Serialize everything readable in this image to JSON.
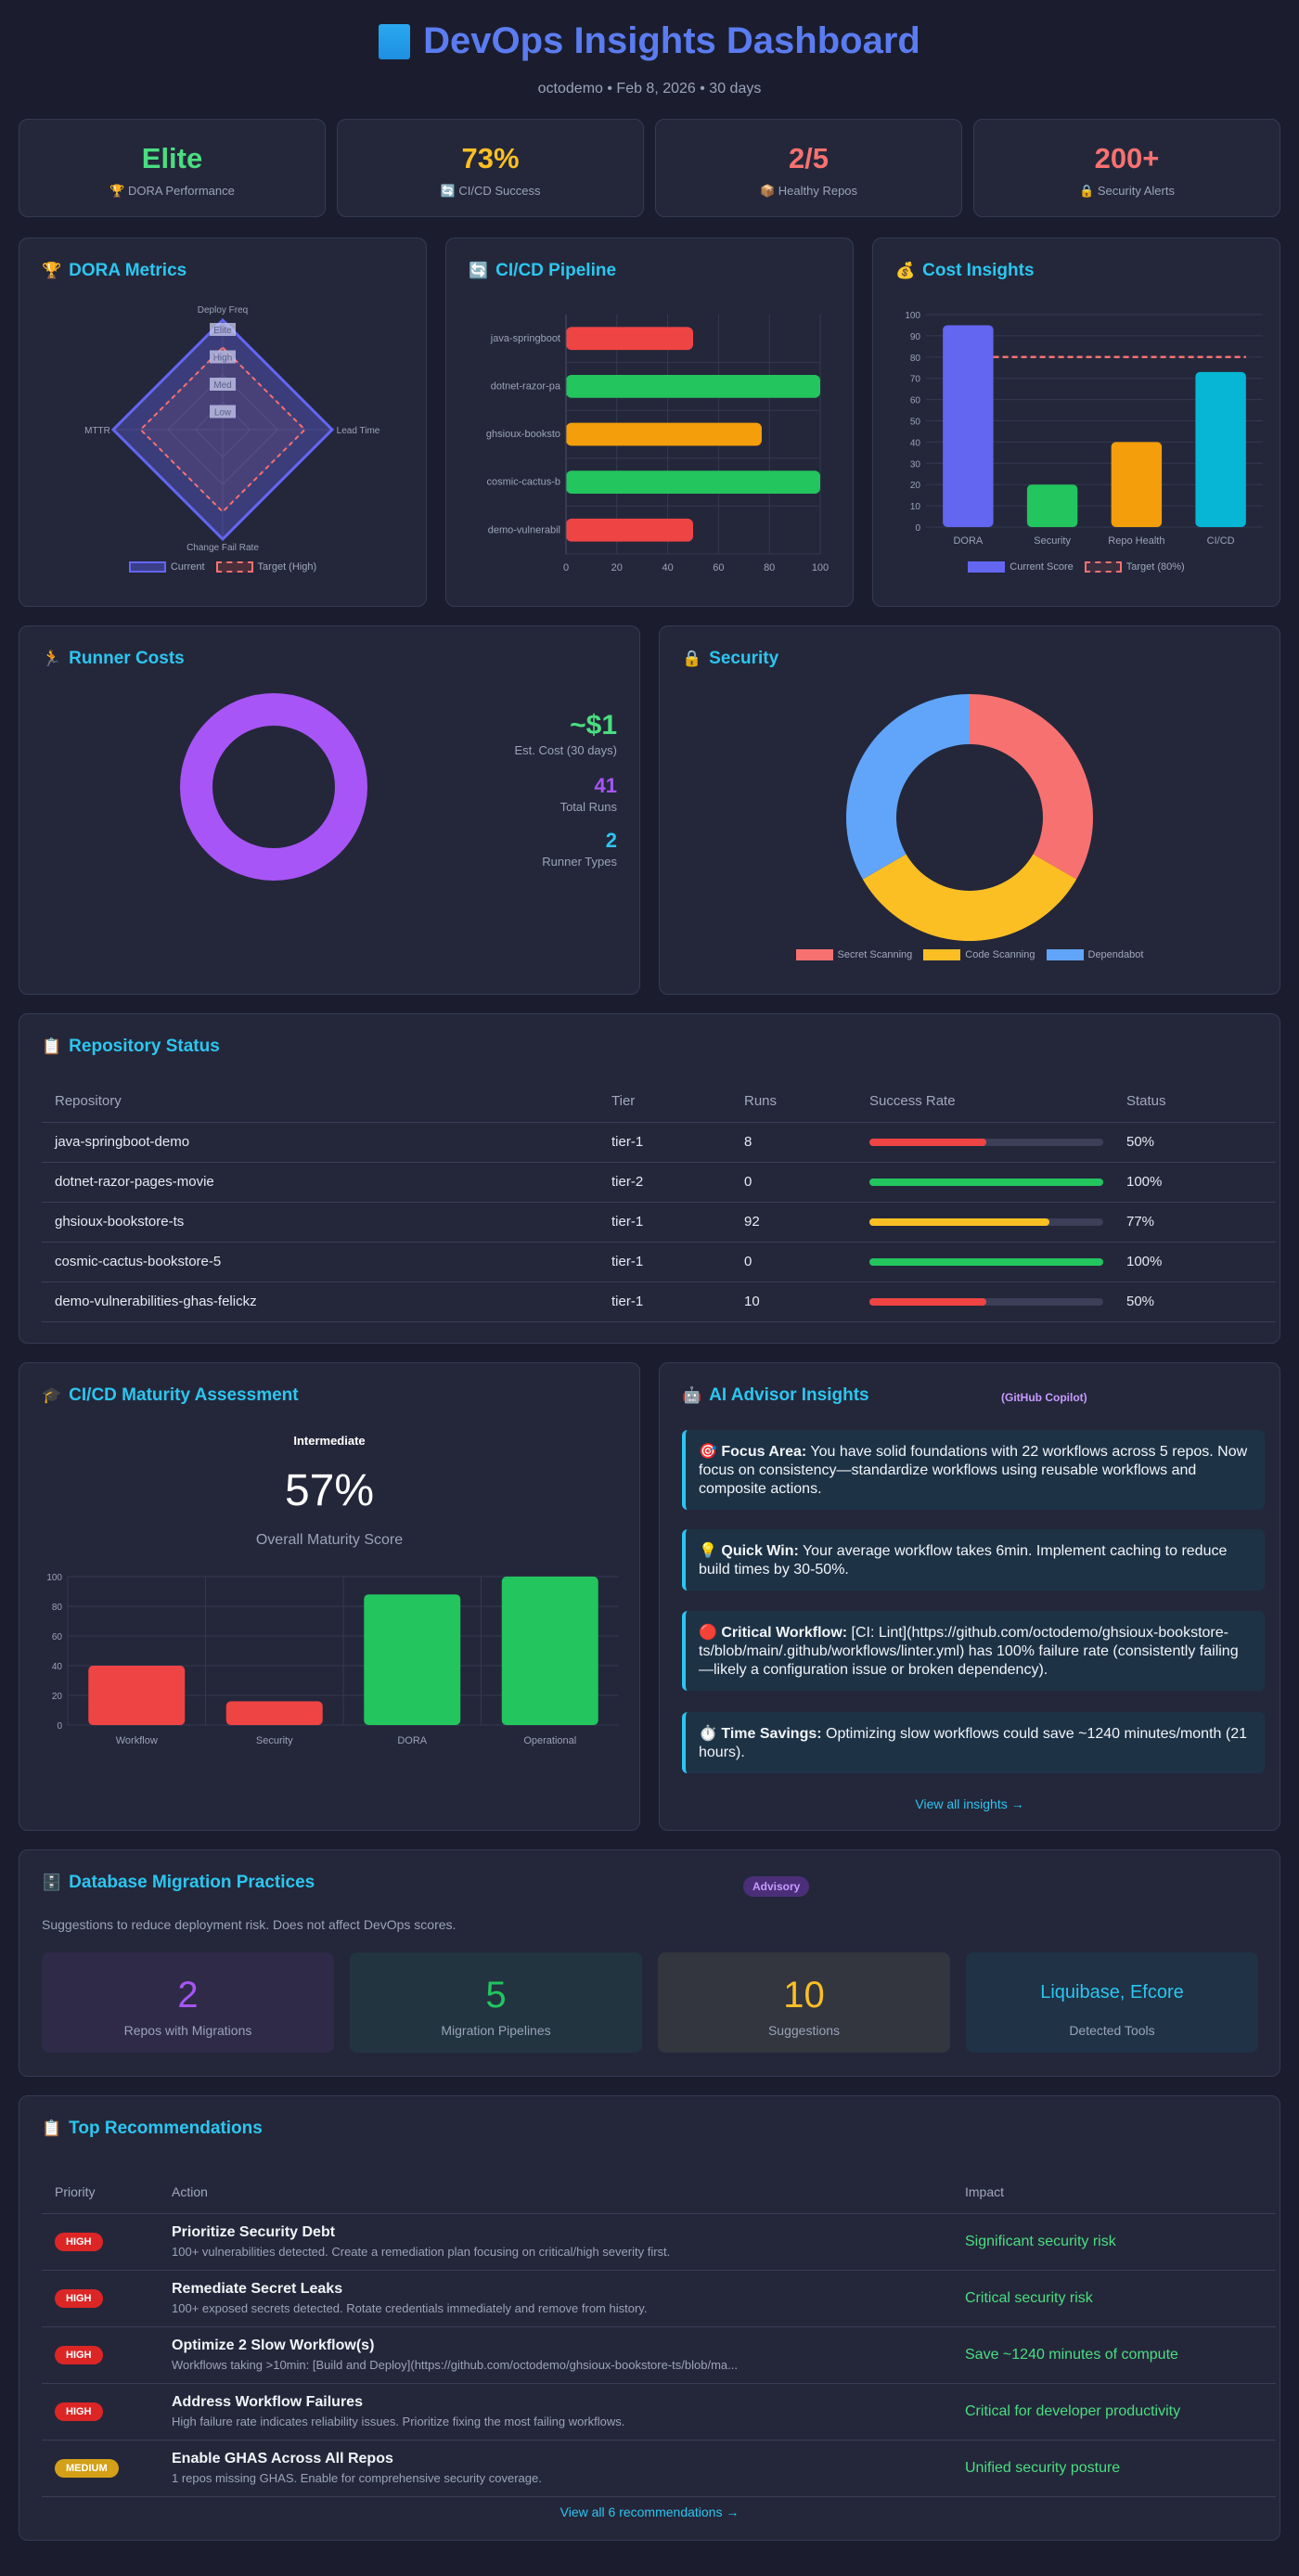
{
  "header": {
    "title": "DevOps Insights Dashboard",
    "subtitle": "octodemo • Feb 8, 2026 • 30 days"
  },
  "kpis": [
    {
      "value": "Elite",
      "label": "DORA Performance",
      "icon": "trophy-icon",
      "emoji": "🏆",
      "color": "#4ade80"
    },
    {
      "value": "73%",
      "label": "CI/CD Success",
      "icon": "refresh-icon",
      "emoji": "🔄",
      "color": "#fbbf24"
    },
    {
      "value": "2/5",
      "label": "Healthy Repos",
      "icon": "package-icon",
      "emoji": "📦",
      "color": "#f87171"
    },
    {
      "value": "200+",
      "label": "Security Alerts",
      "icon": "lock-icon",
      "emoji": "🔒",
      "color": "#f87171"
    }
  ],
  "dora": {
    "title": "DORA Metrics",
    "emoji": "🏆",
    "axes": [
      "Deploy Freq",
      "Lead Time",
      "Change Fail Rate",
      "MTTR"
    ],
    "rings": [
      "Elite",
      "High",
      "Med",
      "Low"
    ],
    "legend_current": "Current",
    "legend_target": "Target (High)"
  },
  "pipeline": {
    "title": "CI/CD Pipeline",
    "emoji": "🔄",
    "xticks": [
      "0",
      "20",
      "40",
      "60",
      "80",
      "100"
    ]
  },
  "cost": {
    "title": "Cost Insights",
    "emoji": "💰",
    "legend_current": "Current Score",
    "legend_target": "Target (80%)"
  },
  "runner": {
    "title": "Runner Costs",
    "emoji": "🏃",
    "cost_value": "~$1",
    "cost_label": "Est. Cost (30 days)",
    "runs_value": "41",
    "runs_label": "Total Runs",
    "types_value": "2",
    "types_label": "Runner Types"
  },
  "security": {
    "title": "Security",
    "emoji": "🔒"
  },
  "repos": {
    "title": "Repository Status",
    "emoji": "📋",
    "headers": [
      "Repository",
      "Tier",
      "Runs",
      "Success Rate",
      "Status"
    ],
    "rows": [
      {
        "name": "java-springboot-demo",
        "tier": "tier-1",
        "runs": "8",
        "rate": 0.5,
        "status": "50%",
        "color": "#ef4444"
      },
      {
        "name": "dotnet-razor-pages-movie",
        "tier": "tier-2",
        "runs": "0",
        "rate": 1.0,
        "status": "100%",
        "color": "#22c55e"
      },
      {
        "name": "ghsioux-bookstore-ts",
        "tier": "tier-1",
        "runs": "92",
        "rate": 0.77,
        "status": "77%",
        "color": "#fbbf24"
      },
      {
        "name": "cosmic-cactus-bookstore-5",
        "tier": "tier-1",
        "runs": "0",
        "rate": 1.0,
        "status": "100%",
        "color": "#22c55e"
      },
      {
        "name": "demo-vulnerabilities-ghas-felickz",
        "tier": "tier-1",
        "runs": "10",
        "rate": 0.5,
        "status": "50%",
        "color": "#ef4444"
      }
    ]
  },
  "maturity": {
    "title": "CI/CD Maturity Assessment",
    "emoji": "🎓",
    "level": "Intermediate",
    "score": "57%",
    "score_label": "Overall Maturity Score"
  },
  "advisor": {
    "title": "AI Advisor Insights",
    "emoji": "🤖",
    "badge": "(GitHub Copilot)",
    "items": [
      {
        "emoji": "🎯",
        "label": "Focus Area:",
        "text": " You have solid foundations with 22 workflows across 5 repos. Now focus on consistency—standardize workflows using reusable workflows and composite actions."
      },
      {
        "emoji": "💡",
        "label": "Quick Win:",
        "text": " Your average workflow takes 6min. Implement caching to reduce build times by 30-50%."
      },
      {
        "emoji": "🔴",
        "label": "Critical Workflow:",
        "text": " [CI: Lint](https://github.com/octodemo/ghsioux-bookstore-ts/blob/main/.github/workflows/linter.yml) has 100% failure rate (consistently failing—likely a configuration issue or broken dependency)."
      },
      {
        "emoji": "⏱️",
        "label": "Time Savings:",
        "text": " Optimizing slow workflows could save ~1240 minutes/month (21 hours)."
      }
    ],
    "view_all": "View all insights →"
  },
  "migration": {
    "title": "Database Migration Practices",
    "emoji": "🗄️",
    "badge": "Advisory",
    "description": "Suggestions to reduce deployment risk. Does not affect DevOps scores.",
    "tiles": [
      {
        "value": "2",
        "label": "Repos with Migrations",
        "color": "#a855f7",
        "bg": "#2e2a48"
      },
      {
        "value": "5",
        "label": "Migration Pipelines",
        "color": "#22c55e",
        "bg": "#223440"
      },
      {
        "value": "10",
        "label": "Suggestions",
        "color": "#fbbf24",
        "bg": "#33353f"
      },
      {
        "value": "Liquibase, Efcore",
        "label": "Detected Tools",
        "color": "#2cc6f0",
        "bg": "#1f3246"
      }
    ]
  },
  "recommendations": {
    "title": "Top Recommendations",
    "emoji": "📋",
    "headers": [
      "Priority",
      "Action",
      "Impact"
    ],
    "rows": [
      {
        "priority": "HIGH",
        "pcolor": "#dc2626",
        "title": "Prioritize Security Debt",
        "desc": "100+ vulnerabilities detected. Create a remediation plan focusing on critical/high severity first.",
        "impact": "Significant security risk"
      },
      {
        "priority": "HIGH",
        "pcolor": "#dc2626",
        "title": "Remediate Secret Leaks",
        "desc": "100+ exposed secrets detected. Rotate credentials immediately and remove from history.",
        "impact": "Critical security risk"
      },
      {
        "priority": "HIGH",
        "pcolor": "#dc2626",
        "title": "Optimize 2 Slow Workflow(s)",
        "desc": "Workflows taking >10min: [Build and Deploy](https://github.com/octodemo/ghsioux-bookstore-ts/blob/ma...",
        "impact": "Save ~1240 minutes of compute"
      },
      {
        "priority": "HIGH",
        "pcolor": "#dc2626",
        "title": "Address Workflow Failures",
        "desc": "High failure rate indicates reliability issues. Prioritize fixing the most failing workflows.",
        "impact": "Critical for developer productivity"
      },
      {
        "priority": "MEDIUM",
        "pcolor": "#d4a017",
        "title": "Enable GHAS Across All Repos",
        "desc": "1 repos missing GHAS. Enable for comprehensive security coverage.",
        "impact": "Unified security posture"
      }
    ],
    "view_all": "View all 6 recommendations →"
  },
  "chart_data": [
    {
      "type": "radar",
      "title": "DORA Metrics",
      "axes": [
        "Deploy Freq",
        "Lead Time",
        "Change Fail Rate",
        "MTTR"
      ],
      "scale": [
        "Low",
        "Med",
        "High",
        "Elite"
      ],
      "series": [
        {
          "name": "Current",
          "values": [
            4,
            4,
            4,
            4
          ],
          "color": "#6366f1"
        },
        {
          "name": "Target (High)",
          "values": [
            3,
            3,
            3,
            3
          ],
          "color": "#f87171"
        }
      ]
    },
    {
      "type": "bar",
      "orientation": "horizontal",
      "title": "CI/CD Pipeline",
      "categories": [
        "java-springboot",
        "dotnet-razor-pa",
        "ghsioux-booksto",
        "cosmic-cactus-b",
        "demo-vulnerabil"
      ],
      "values": [
        50,
        100,
        77,
        100,
        50
      ],
      "colors": [
        "#ef4444",
        "#22c55e",
        "#f59e0b",
        "#22c55e",
        "#ef4444"
      ],
      "xlim": [
        0,
        100
      ]
    },
    {
      "type": "bar",
      "title": "Cost Insights",
      "categories": [
        "DORA",
        "Security",
        "Repo Health",
        "CI/CD"
      ],
      "series": [
        {
          "name": "Current Score",
          "values": [
            95,
            20,
            40,
            73
          ]
        }
      ],
      "colors": [
        "#6366f1",
        "#22c55e",
        "#f59e0b",
        "#06b6d4"
      ],
      "target": {
        "name": "Target (80%)",
        "value": 80
      },
      "ylim": [
        0,
        100
      ],
      "yticks": [
        "0",
        "10",
        "20",
        "30",
        "40",
        "50",
        "60",
        "70",
        "80",
        "90",
        "100"
      ]
    },
    {
      "type": "pie",
      "title": "Runner Costs",
      "labels": [
        ""
      ],
      "values": [
        1
      ],
      "colors": [
        "#a855f7"
      ]
    },
    {
      "type": "pie",
      "title": "Security",
      "labels": [
        "Secret Scanning",
        "Code Scanning",
        "Dependabot"
      ],
      "values": [
        100,
        100,
        100
      ],
      "colors": [
        "#f87171",
        "#fbbf24",
        "#60a5fa"
      ]
    },
    {
      "type": "bar",
      "title": "CI/CD Maturity Assessment",
      "categories": [
        "Workflow",
        "Security",
        "DORA",
        "Operational"
      ],
      "values": [
        40,
        16,
        88,
        100
      ],
      "colors": [
        "#ef4444",
        "#ef4444",
        "#22c55e",
        "#22c55e"
      ],
      "ylim": [
        0,
        100
      ],
      "yticks": [
        "0",
        "20",
        "40",
        "60",
        "80",
        "100"
      ]
    }
  ]
}
